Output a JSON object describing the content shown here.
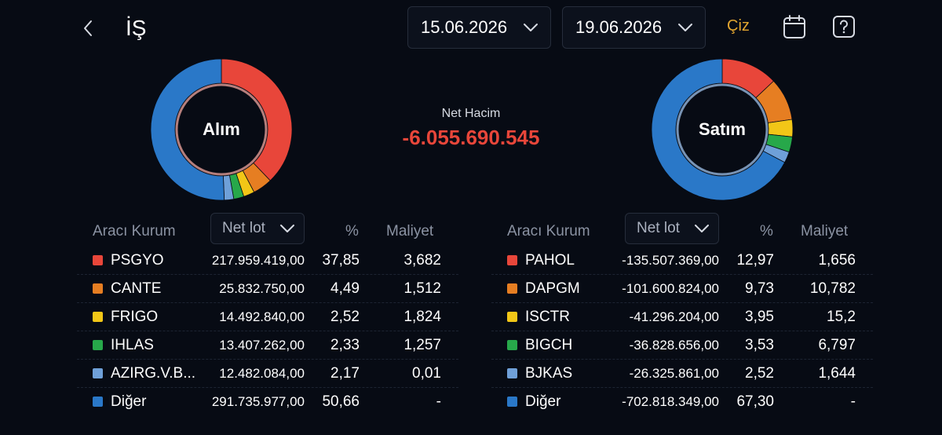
{
  "header": {
    "symbol": "İŞ",
    "start_date": "15.06.2026",
    "end_date": "19.06.2026",
    "draw_label": "Çiz",
    "icons": [
      "chevron-left-icon",
      "chevron-down-icon",
      "calendar-icon",
      "help-icon"
    ]
  },
  "summary": {
    "net_volume_label": "Net Hacim",
    "net_volume_value": "-6.055.690.545",
    "buy_label": "Alım",
    "sell_label": "Satım"
  },
  "colors": {
    "background": "#070b14",
    "negative": "#e8463a",
    "accent": "#e2a630",
    "c1": "#e8463a",
    "c2": "#e67e22",
    "c3": "#f2c617",
    "c4": "#27a84a",
    "c5": "#6fa0d8",
    "c6": "#2a78c8"
  },
  "tables": {
    "col_broker": "Aracı Kurum",
    "col_lot": "Net lot",
    "col_pct": "%",
    "col_cost": "Maliyet",
    "buy": [
      {
        "name": "PSGYO",
        "lot": "217.959.419,00",
        "pct": "37,85",
        "cost": "3,682",
        "color": "#e8463a"
      },
      {
        "name": "CANTE",
        "lot": "25.832.750,00",
        "pct": "4,49",
        "cost": "1,512",
        "color": "#e67e22"
      },
      {
        "name": "FRIGO",
        "lot": "14.492.840,00",
        "pct": "2,52",
        "cost": "1,824",
        "color": "#f2c617"
      },
      {
        "name": "IHLAS",
        "lot": "13.407.262,00",
        "pct": "2,33",
        "cost": "1,257",
        "color": "#27a84a"
      },
      {
        "name": "AZIRG.V.B...",
        "lot": "12.482.084,00",
        "pct": "2,17",
        "cost": "0,01",
        "color": "#6fa0d8"
      },
      {
        "name": "Diğer",
        "lot": "291.735.977,00",
        "pct": "50,66",
        "cost": "-",
        "color": "#2a78c8"
      }
    ],
    "sell": [
      {
        "name": "PAHOL",
        "lot": "-135.507.369,00",
        "pct": "12,97",
        "cost": "1,656",
        "color": "#e8463a"
      },
      {
        "name": "DAPGM",
        "lot": "-101.600.824,00",
        "pct": "9,73",
        "cost": "10,782",
        "color": "#e67e22"
      },
      {
        "name": "ISCTR",
        "lot": "-41.296.204,00",
        "pct": "3,95",
        "cost": "15,2",
        "color": "#f2c617"
      },
      {
        "name": "BIGCH",
        "lot": "-36.828.656,00",
        "pct": "3,53",
        "cost": "6,797",
        "color": "#27a84a"
      },
      {
        "name": "BJKAS",
        "lot": "-26.325.861,00",
        "pct": "2,52",
        "cost": "1,644",
        "color": "#6fa0d8"
      },
      {
        "name": "Diğer",
        "lot": "-702.818.349,00",
        "pct": "67,30",
        "cost": "-",
        "color": "#2a78c8"
      }
    ]
  },
  "chart_data": [
    {
      "type": "pie",
      "categories": [
        "PSGYO",
        "CANTE",
        "FRIGO",
        "IHLAS",
        "AZIRG.V.B...",
        "Diğer"
      ],
      "values": [
        37.85,
        4.49,
        2.52,
        2.33,
        2.17,
        50.66
      ],
      "colors": [
        "#e8463a",
        "#e67e22",
        "#f2c617",
        "#27a84a",
        "#6fa0d8",
        "#2a78c8"
      ],
      "title": "Alım"
    },
    {
      "type": "pie",
      "categories": [
        "PAHOL",
        "DAPGM",
        "ISCTR",
        "BIGCH",
        "BJKAS",
        "Diğer"
      ],
      "values": [
        12.97,
        9.73,
        3.95,
        3.53,
        2.52,
        67.3
      ],
      "colors": [
        "#e8463a",
        "#e67e22",
        "#f2c617",
        "#27a84a",
        "#6fa0d8",
        "#2a78c8"
      ],
      "title": "Satım"
    }
  ]
}
